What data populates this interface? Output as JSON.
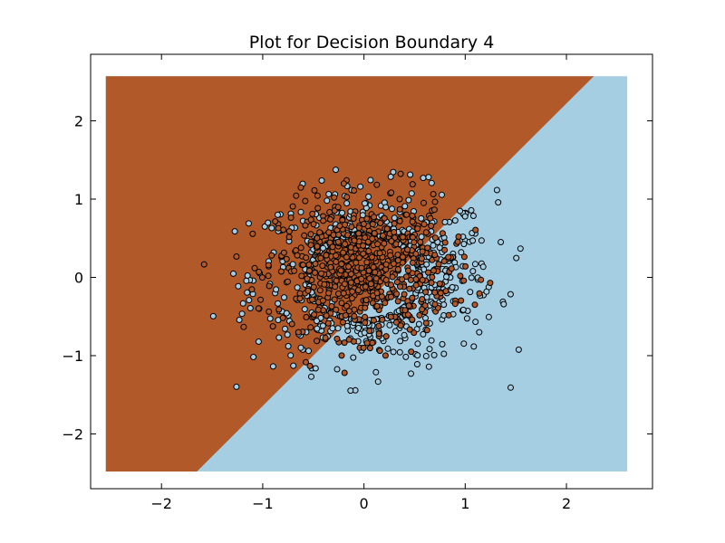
{
  "chart_data": {
    "type": "scatter",
    "title": "Plot for Decision Boundary 4",
    "xlabel": "",
    "ylabel": "",
    "xlim": [
      -2.7,
      2.85
    ],
    "ylim": [
      -2.7,
      2.85
    ],
    "xticks": [
      -2,
      -1,
      0,
      1,
      2
    ],
    "yticks": [
      -2,
      -1,
      0,
      1,
      2
    ],
    "xtick_labels": [
      "−2",
      "−1",
      "0",
      "1",
      "2"
    ],
    "ytick_labels": [
      "−2",
      "−1",
      "0",
      "1",
      "2"
    ],
    "grid": false,
    "colors": {
      "region_a": "#b15928",
      "region_b": "#a6cee3",
      "class_a_points": "#b15928",
      "class_b_points": "#a6cee3",
      "edge": "#000000"
    },
    "decision_boundary": {
      "description_points": [
        [
          -1.65,
          -2.48
        ],
        [
          2.27,
          2.57
        ]
      ],
      "region_a_side": "upper-left",
      "region_b_side": "lower-right"
    },
    "mesh_extent": {
      "x": [
        -2.55,
        2.6
      ],
      "y": [
        -2.48,
        2.57
      ]
    },
    "series": [
      {
        "class": "a",
        "n_points": 700,
        "center": [
          0.0,
          0.1
        ],
        "spread": [
          0.42,
          0.42
        ]
      },
      {
        "class": "b",
        "n_points": 700,
        "center": [
          0.1,
          0.0
        ],
        "spread": [
          0.6,
          0.55
        ]
      }
    ]
  }
}
